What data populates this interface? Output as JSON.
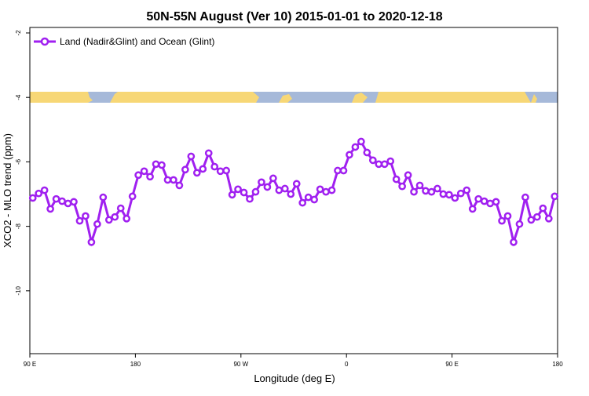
{
  "chart_data": {
    "type": "line",
    "title": "50N-55N August (Ver 10)   2015-01-01 to 2020-12-18",
    "x_label": "Longitude (deg E)",
    "y_label": "XCO2 - MLO trend (ppm)",
    "x": [
      92.5,
      97.5,
      102.5,
      107.5,
      112.5,
      117.5,
      122.5,
      127.5,
      132.5,
      137.5,
      142.5,
      147.5,
      152.5,
      157.5,
      162.5,
      167.5,
      172.5,
      177.5,
      182.5,
      187.5,
      192.5,
      197.5,
      202.5,
      207.5,
      212.5,
      217.5,
      222.5,
      227.5,
      232.5,
      237.5,
      242.5,
      247.5,
      252.5,
      257.5,
      262.5,
      267.5,
      272.5,
      277.5,
      282.5,
      287.5,
      292.5,
      297.5,
      302.5,
      307.5,
      312.5,
      317.5,
      322.5,
      327.5,
      332.5,
      337.5,
      342.5,
      347.5,
      352.5,
      357.5,
      362.5,
      367.5,
      372.5,
      377.5,
      382.5,
      387.5,
      392.5,
      397.5,
      402.5,
      407.5,
      412.5,
      417.5,
      422.5,
      427.5,
      432.5,
      437.5,
      442.5,
      447.5,
      452.5,
      457.5,
      462.5,
      467.5,
      472.5,
      477.5,
      482.5,
      487.5,
      492.5,
      497.5,
      502.5,
      507.5,
      512.5,
      517.5,
      522.5,
      527.5,
      532.5,
      537.5
    ],
    "series": [
      {
        "name": "Land (Nadir&Glint) and Ocean (Glint)",
        "color": "#a020f0",
        "values": [
          -7.12,
          -6.98,
          -6.88,
          -7.46,
          -7.15,
          -7.22,
          -7.29,
          -7.24,
          -7.83,
          -7.68,
          -8.49,
          -7.93,
          -7.1,
          -7.8,
          -7.71,
          -7.44,
          -7.76,
          -7.07,
          -6.41,
          -6.29,
          -6.46,
          -6.07,
          -6.1,
          -6.56,
          -6.56,
          -6.73,
          -6.24,
          -5.83,
          -6.34,
          -6.22,
          -5.73,
          -6.15,
          -6.29,
          -6.27,
          -7.02,
          -6.85,
          -6.95,
          -7.15,
          -6.93,
          -6.63,
          -6.78,
          -6.51,
          -6.88,
          -6.83,
          -7.0,
          -6.68,
          -7.27,
          -7.1,
          -7.17,
          -6.85,
          -6.93,
          -6.88,
          -6.27,
          -6.27,
          -5.78,
          -5.54,
          -5.37,
          -5.71,
          -5.95,
          -6.07,
          -6.07,
          -5.98,
          -6.54,
          -6.76,
          -6.41,
          -6.93,
          -6.73,
          -6.9,
          -6.93,
          -6.83,
          -7.0,
          -7.02,
          -7.12,
          -6.98,
          -6.88,
          -7.46,
          -7.15,
          -7.22,
          -7.29,
          -7.24,
          -7.83,
          -7.68,
          -8.49,
          -7.93,
          -7.1,
          -7.8,
          -7.71,
          -7.44,
          -7.76,
          -7.07
        ]
      }
    ],
    "xlim": [
      90,
      540
    ],
    "xticks": [
      {
        "value": 90,
        "label": "90 E"
      },
      180,
      {
        "value": 270,
        "label": "90 W"
      },
      {
        "value": 360,
        "label": "0"
      },
      {
        "value": 450,
        "label": "90 E"
      },
      {
        "value": 540,
        "label": "180"
      }
    ],
    "ylim": [
      -11.95,
      -1.83
    ],
    "yticks": [
      -2,
      -4,
      -6,
      -8,
      -10
    ],
    "legend": "top-left"
  }
}
